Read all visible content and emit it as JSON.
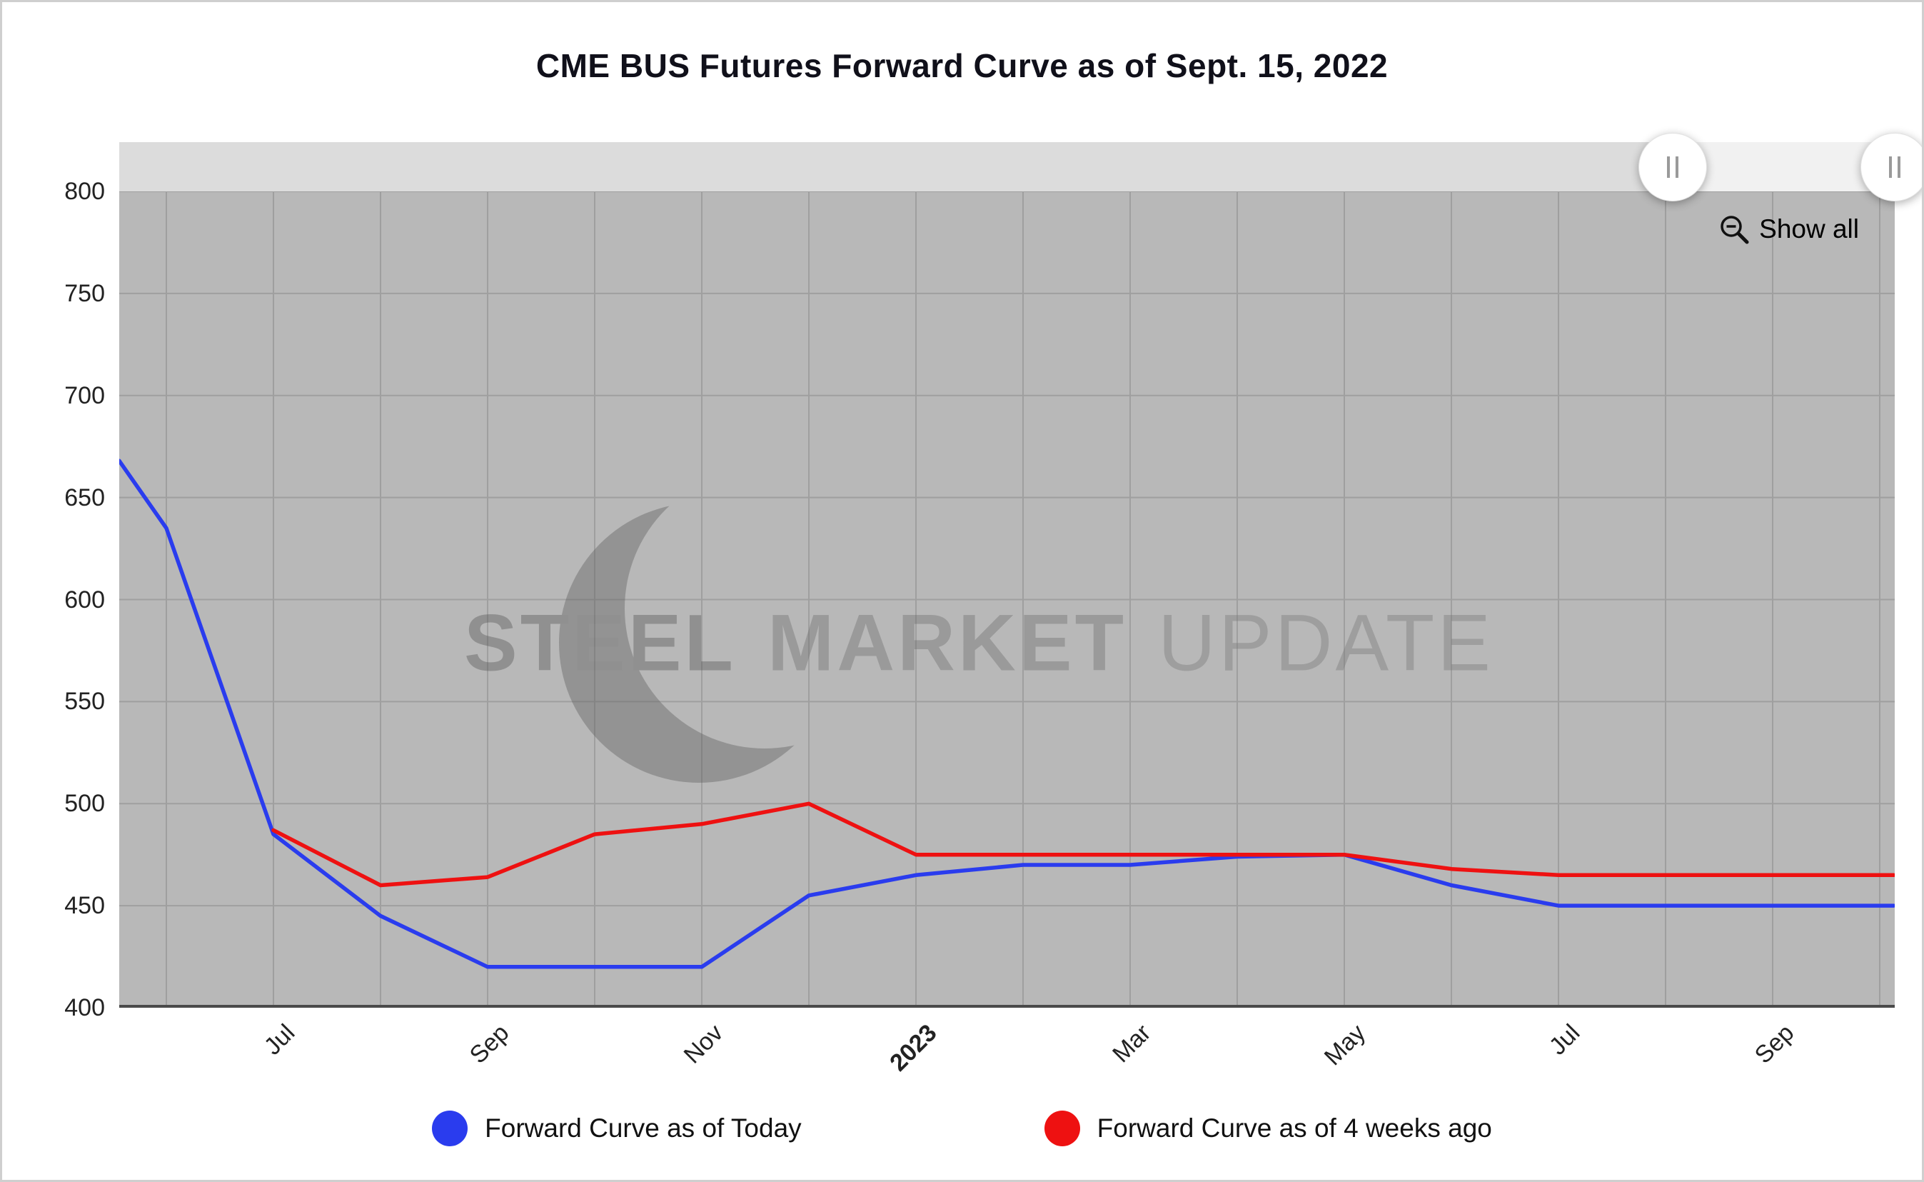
{
  "title": "CME BUS Futures Forward Curve as of Sept. 15, 2022",
  "controls": {
    "show_all_label": "Show all"
  },
  "watermark": {
    "words": [
      "STEEL",
      "MARKET",
      "UPDATE"
    ]
  },
  "legend": [
    {
      "label": "Forward Curve as of Today",
      "color": "#2a3cee"
    },
    {
      "label": "Forward Curve as of 4 weeks ago",
      "color": "#ee1111"
    }
  ],
  "chart_data": {
    "type": "line",
    "title": "CME BUS Futures Forward Curve as of Sept. 15, 2022",
    "ylabel": "",
    "xlabel": "",
    "ylim": [
      400,
      800
    ],
    "ytick_step": 50,
    "grid": "on",
    "plot_bg": "#b8b8b8",
    "x_unit": "month index, 0 = Jul 2022, 14 = Sep 2023",
    "x_range": [
      -1.44,
      15.13
    ],
    "x_ticks": [
      {
        "m": 0,
        "label": "Jul"
      },
      {
        "m": 2,
        "label": "Sep"
      },
      {
        "m": 4,
        "label": "Nov"
      },
      {
        "m": 6,
        "label": "2023",
        "bold": true
      },
      {
        "m": 8,
        "label": "Mar"
      },
      {
        "m": 10,
        "label": "May"
      },
      {
        "m": 12,
        "label": "Jul"
      },
      {
        "m": 14,
        "label": "Sep"
      }
    ],
    "series": [
      {
        "id": "forward-curve-today-line",
        "name": "Forward Curve as of Today",
        "color": "#2a3cee",
        "points": [
          [
            -1.44,
            668
          ],
          [
            -1,
            635
          ],
          [
            0,
            485
          ],
          [
            1,
            445
          ],
          [
            2,
            420
          ],
          [
            3,
            420
          ],
          [
            4,
            420
          ],
          [
            5,
            455
          ],
          [
            6,
            465
          ],
          [
            7,
            470
          ],
          [
            8,
            470
          ],
          [
            9,
            474
          ],
          [
            10,
            475
          ],
          [
            11,
            460
          ],
          [
            12,
            450
          ],
          [
            13,
            450
          ],
          [
            14,
            450
          ],
          [
            15.13,
            450
          ]
        ]
      },
      {
        "id": "forward-curve-4-weeks-ago-line",
        "name": "Forward Curve as of 4 weeks ago",
        "color": "#ee1111",
        "points": [
          [
            0,
            487
          ],
          [
            1,
            460
          ],
          [
            2,
            464
          ],
          [
            3,
            485
          ],
          [
            4,
            490
          ],
          [
            5,
            500
          ],
          [
            6,
            475
          ],
          [
            7,
            475
          ],
          [
            8,
            475
          ],
          [
            9,
            475
          ],
          [
            10,
            475
          ],
          [
            11,
            468
          ],
          [
            12,
            465
          ],
          [
            13,
            465
          ],
          [
            14,
            465
          ],
          [
            15.13,
            465
          ]
        ]
      }
    ]
  }
}
